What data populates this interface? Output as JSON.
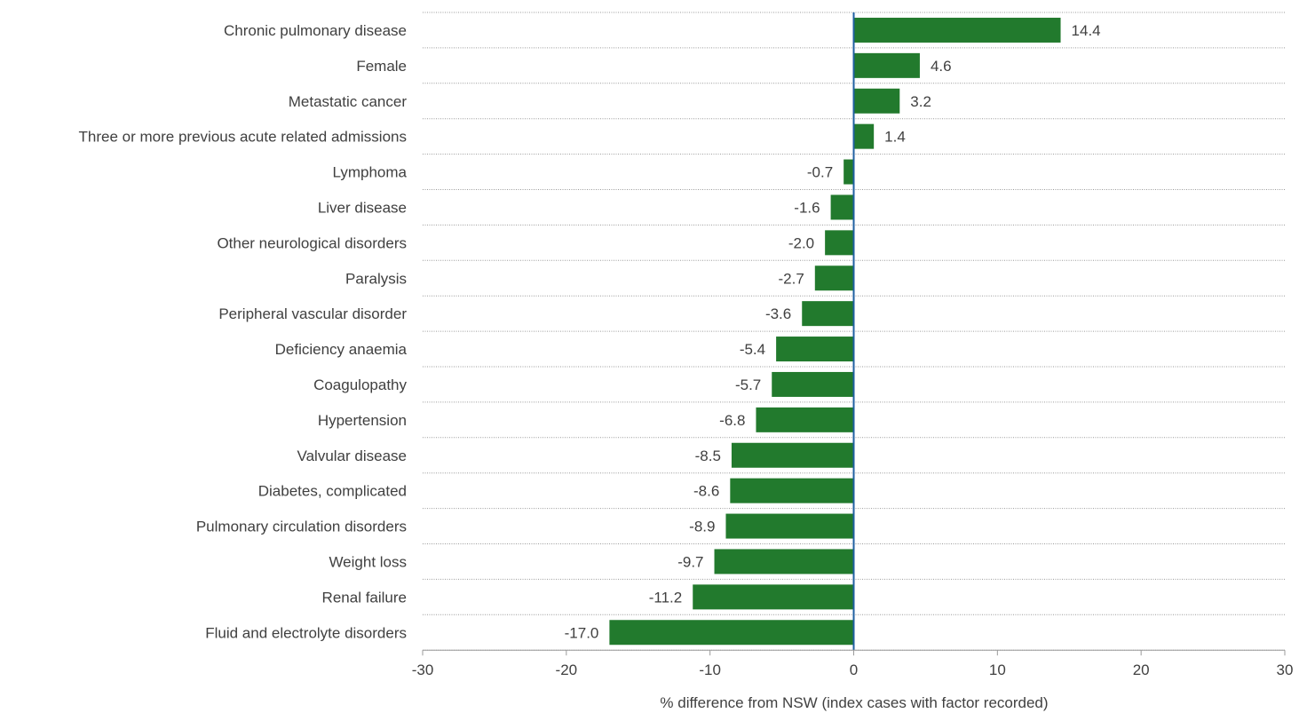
{
  "chart_data": {
    "type": "bar",
    "orientation": "horizontal",
    "title": "",
    "xlabel": "% difference from NSW (index cases with factor recorded)",
    "ylabel": "",
    "xlim": [
      -30,
      30
    ],
    "xticks": [
      -30,
      -20,
      -10,
      0,
      10,
      20,
      30
    ],
    "grid": true,
    "bar_color": "#227a2d",
    "zero_line_color": "#1f5fa0",
    "categories": [
      "Chronic pulmonary disease",
      "Female",
      "Metastatic cancer",
      "Three or more previous acute related admissions",
      "Lymphoma",
      "Liver disease",
      "Other neurological disorders",
      "Paralysis",
      "Peripheral vascular disorder",
      "Deficiency anaemia",
      "Coagulopathy",
      "Hypertension",
      "Valvular disease",
      "Diabetes, complicated",
      "Pulmonary circulation disorders",
      "Weight loss",
      "Renal failure",
      "Fluid and electrolyte disorders"
    ],
    "values": [
      14.4,
      4.6,
      3.2,
      1.4,
      -0.7,
      -1.6,
      -2.0,
      -2.7,
      -3.6,
      -5.4,
      -5.7,
      -6.8,
      -8.5,
      -8.6,
      -8.9,
      -9.7,
      -11.2,
      -17.0
    ],
    "value_labels": [
      "14.4",
      "4.6",
      "3.2",
      "1.4",
      "-0.7",
      "-1.6",
      "-2.0",
      "-2.7",
      "-3.6",
      "-5.4",
      "-5.7",
      "-6.8",
      "-8.5",
      "-8.6",
      "-8.9",
      "-9.7",
      "-11.2",
      "-17.0"
    ]
  }
}
